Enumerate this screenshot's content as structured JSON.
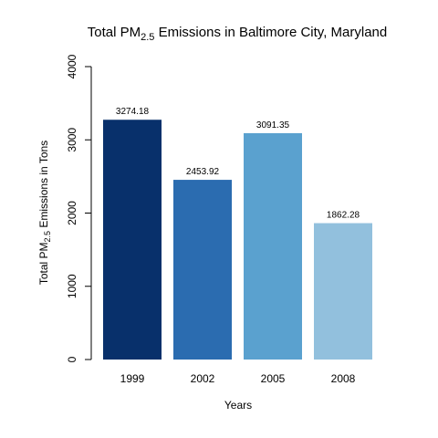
{
  "chart_data": {
    "type": "bar",
    "title": {
      "prefix": "Total PM",
      "subscript": "2.5",
      "suffix": " Emissions in Baltimore City, Maryland"
    },
    "xlabel": "Years",
    "ylabel": {
      "prefix": "Total PM",
      "subscript": "2.5",
      "suffix": " Emissions in Tons"
    },
    "categories": [
      "1999",
      "2002",
      "2005",
      "2008"
    ],
    "values": [
      3274.18,
      2453.92,
      3091.35,
      1862.28
    ],
    "value_labels": [
      "3274.18",
      "2453.92",
      "3091.35",
      "1862.28"
    ],
    "ylim": [
      0,
      4000
    ],
    "yticks": [
      0,
      1000,
      2000,
      3000,
      4000
    ],
    "ytick_labels": [
      "0",
      "1000",
      "2000",
      "3000",
      "4000"
    ],
    "colors": [
      "#08306b",
      "#2b6cb0",
      "#5aa1cf",
      "#92c0dd"
    ],
    "grid": false,
    "legend": "none"
  }
}
